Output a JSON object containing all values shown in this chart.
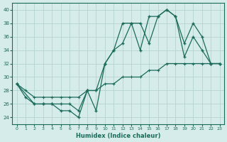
{
  "xlabel": "Humidex (Indice chaleur)",
  "bg_color": "#d6ecea",
  "grid_color": "#b0ceca",
  "line_color": "#1a6b5a",
  "xlim": [
    -0.5,
    23.5
  ],
  "ylim": [
    23,
    41
  ],
  "yticks": [
    24,
    26,
    28,
    30,
    32,
    34,
    36,
    38,
    40
  ],
  "xticks": [
    0,
    1,
    2,
    3,
    4,
    5,
    6,
    7,
    8,
    9,
    10,
    11,
    12,
    13,
    14,
    15,
    16,
    17,
    18,
    19,
    20,
    21,
    22,
    23
  ],
  "line1_x": [
    0,
    1,
    2,
    3,
    4,
    5,
    6,
    7,
    8,
    9,
    10,
    11,
    12,
    13,
    14,
    15,
    16,
    17,
    18,
    19,
    20,
    21,
    22,
    23
  ],
  "line1_y": [
    29,
    27,
    26,
    26,
    26,
    25,
    25,
    24,
    28,
    25,
    32,
    34,
    38,
    38,
    34,
    39,
    39,
    40,
    39,
    33,
    36,
    34,
    32,
    32
  ],
  "line2_x": [
    0,
    2,
    3,
    4,
    5,
    6,
    7,
    8,
    9,
    10,
    11,
    12,
    13,
    14,
    15,
    16,
    17,
    18,
    19,
    20,
    21,
    22,
    23
  ],
  "line2_y": [
    29,
    26,
    26,
    26,
    26,
    26,
    25,
    28,
    28,
    32,
    34,
    35,
    38,
    38,
    35,
    39,
    40,
    39,
    35,
    38,
    36,
    32,
    32
  ],
  "line3_x": [
    0,
    1,
    2,
    3,
    4,
    5,
    6,
    7,
    8,
    9,
    10,
    11,
    12,
    13,
    14,
    15,
    16,
    17,
    18,
    19,
    20,
    21,
    22,
    23
  ],
  "line3_y": [
    29,
    28,
    27,
    27,
    27,
    27,
    27,
    27,
    28,
    28,
    29,
    29,
    30,
    30,
    30,
    31,
    31,
    32,
    32,
    32,
    32,
    32,
    32,
    32
  ]
}
